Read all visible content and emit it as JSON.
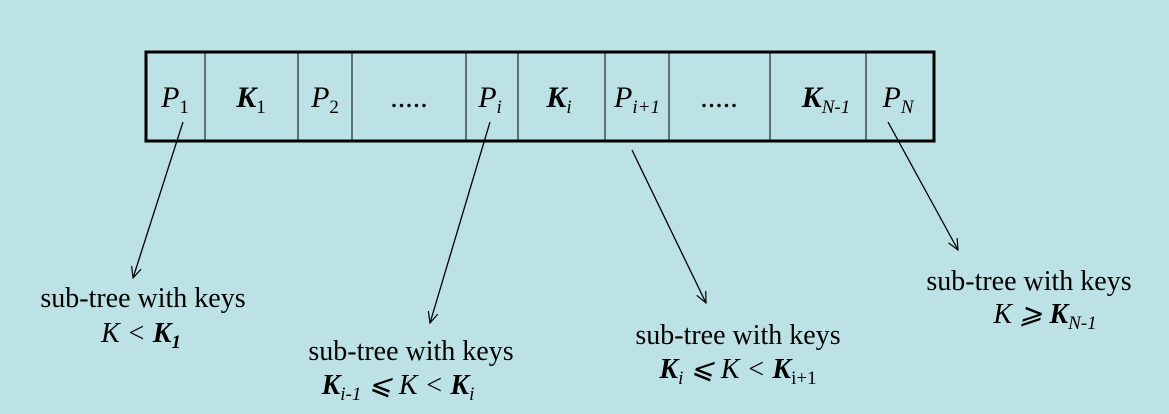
{
  "cells": [
    {
      "base": "P",
      "sub": "1"
    },
    {
      "base": "K",
      "sub": "1"
    },
    {
      "base": "P",
      "sub": "2"
    },
    {
      "text": "....."
    },
    {
      "base": "P",
      "sub": "i"
    },
    {
      "base": "K",
      "sub": "i"
    },
    {
      "base": "P",
      "sub": "i+1"
    },
    {
      "text": "....."
    },
    {
      "base": "K",
      "sub": "N-1"
    },
    {
      "base": "P",
      "sub": "N"
    }
  ],
  "subtrees": [
    {
      "label": "sub-tree with keys",
      "condition": [
        {
          "text": "K < "
        },
        {
          "base": "K",
          "sub": "1"
        }
      ]
    },
    {
      "label": "sub-tree with keys",
      "condition": [
        {
          "base": "K",
          "sub": "i-1"
        },
        {
          "text": " ⩽ K < "
        },
        {
          "base": "K",
          "sub": "i"
        }
      ]
    },
    {
      "label": "sub-tree with keys",
      "condition": [
        {
          "base": "K",
          "sub": "i"
        },
        {
          "text": " ⩽ K < "
        },
        {
          "base": "K",
          "sub": "i+1"
        }
      ]
    },
    {
      "label": "sub-tree with keys",
      "condition": [
        {
          "text": "K ⩾ "
        },
        {
          "base": "K",
          "sub": "N-1"
        }
      ]
    }
  ]
}
